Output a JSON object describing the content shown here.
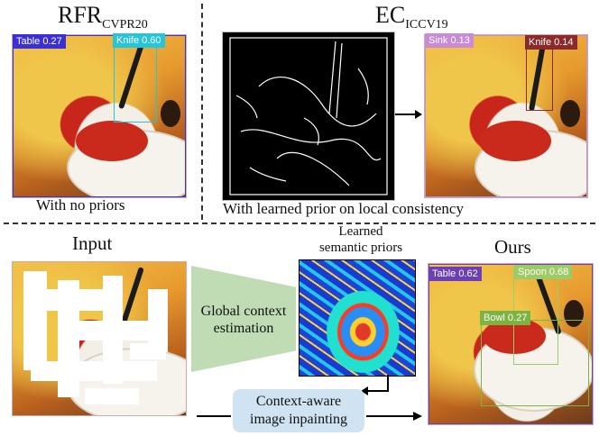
{
  "top": {
    "rfr": {
      "title": "RFR",
      "title_sub": "CVPR20",
      "caption": "With no priors",
      "detections": [
        {
          "label": "Table 0.27",
          "color": "#3b2fd6"
        },
        {
          "label": "Knife 0.60",
          "color": "#26c6da"
        }
      ]
    },
    "ec": {
      "title": "EC",
      "title_sub": "ICCV19",
      "caption": "With learned prior on local consistency",
      "detections": [
        {
          "label": "Sink 0.13",
          "color": "#c98ad6"
        },
        {
          "label": "Knife 0.14",
          "color": "#8a2a2a"
        }
      ]
    }
  },
  "bottom": {
    "input_label": "Input",
    "priors_label_line1": "Learned",
    "priors_label_line2": "semantic priors",
    "global_line1": "Global context",
    "global_line2": "estimation",
    "inpaint_line1": "Context-aware",
    "inpaint_line2": "image inpainting",
    "ours_label": "Ours",
    "detections": [
      {
        "label": "Table 0.62",
        "color": "#6a3fb8"
      },
      {
        "label": "Spoon 0.68",
        "color": "#9ccc65"
      },
      {
        "label": "Bowl 0.27",
        "color": "#7cb342"
      }
    ]
  },
  "colors": {
    "global_funnel": "#bfdcb5",
    "inpaint_box": "#cfe3f3"
  }
}
